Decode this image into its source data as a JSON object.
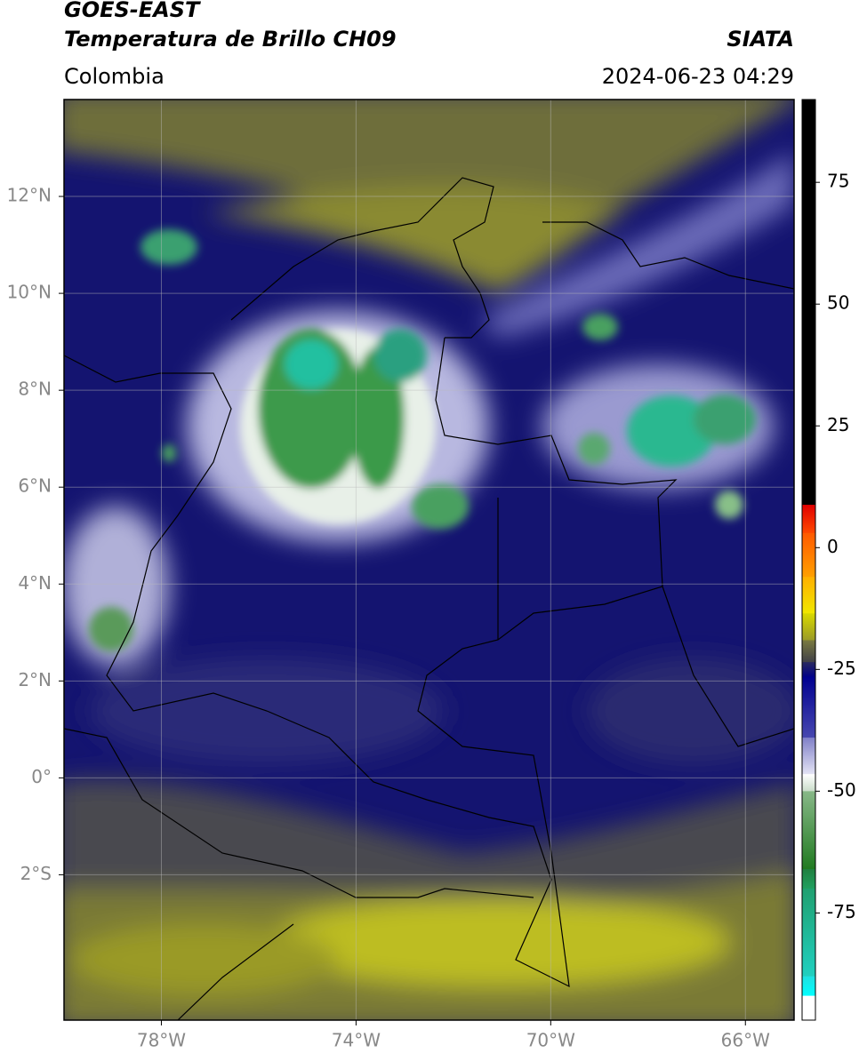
{
  "header": {
    "title": "GOES-EAST",
    "subtitle": "Temperatura de Brillo CH09",
    "source": "SIATA",
    "region": "Colombia",
    "datetime": "2024-06-23 04:29"
  },
  "map": {
    "xlim": [
      -80,
      -65
    ],
    "ylim": [
      -5,
      14
    ],
    "xticks": [
      {
        "value": -78,
        "label": "78°W"
      },
      {
        "value": -74,
        "label": "74°W"
      },
      {
        "value": -70,
        "label": "70°W"
      },
      {
        "value": -66,
        "label": "66°W"
      }
    ],
    "yticks": [
      {
        "value": -2,
        "label": "2°S"
      },
      {
        "value": 0,
        "label": "0°"
      },
      {
        "value": 2,
        "label": "2°N"
      },
      {
        "value": 4,
        "label": "4°N"
      },
      {
        "value": 6,
        "label": "6°N"
      },
      {
        "value": 8,
        "label": "8°N"
      },
      {
        "value": 10,
        "label": "10°N"
      },
      {
        "value": 12,
        "label": "12°N"
      }
    ],
    "grid": true
  },
  "colorbar": {
    "lim": [
      -97,
      92
    ],
    "ticks": [
      -75,
      -50,
      -25,
      0,
      25,
      50,
      75
    ],
    "segments": [
      {
        "from": 92,
        "to": 8.8,
        "colors": [
          "#000000",
          "#000000"
        ]
      },
      {
        "from": 8.8,
        "to": 3,
        "colors": [
          "#e00000",
          "#ff4a00"
        ]
      },
      {
        "from": 3,
        "to": -6,
        "colors": [
          "#ff5a00",
          "#ffa000"
        ]
      },
      {
        "from": -6,
        "to": -13.5,
        "colors": [
          "#ffb000",
          "#f0e800"
        ]
      },
      {
        "from": -13.5,
        "to": -19,
        "colors": [
          "#d8d800",
          "#9a9a28"
        ]
      },
      {
        "from": -19,
        "to": -23.5,
        "colors": [
          "#7a7a40",
          "#404048"
        ]
      },
      {
        "from": -23.5,
        "to": -26.5,
        "colors": [
          "#2a2a60",
          "#000088"
        ]
      },
      {
        "from": -26.5,
        "to": -39,
        "colors": [
          "#000090",
          "#4848b0"
        ]
      },
      {
        "from": -39,
        "to": -46.5,
        "colors": [
          "#8080c8",
          "#e4e4f4"
        ]
      },
      {
        "from": -46.5,
        "to": -50,
        "colors": [
          "#ffffff",
          "#c8dcc8"
        ]
      },
      {
        "from": -50,
        "to": -66,
        "colors": [
          "#88b888",
          "#207a20"
        ]
      },
      {
        "from": -66,
        "to": -70,
        "colors": [
          "#208040",
          "#20a060"
        ]
      },
      {
        "from": -70,
        "to": -88,
        "colors": [
          "#20a070",
          "#20d0c0"
        ]
      },
      {
        "from": -88,
        "to": -92,
        "colors": [
          "#20e0e0",
          "#00ffff"
        ]
      },
      {
        "from": -92,
        "to": -97,
        "colors": [
          "#ffffff",
          "#ffffff"
        ]
      }
    ]
  }
}
